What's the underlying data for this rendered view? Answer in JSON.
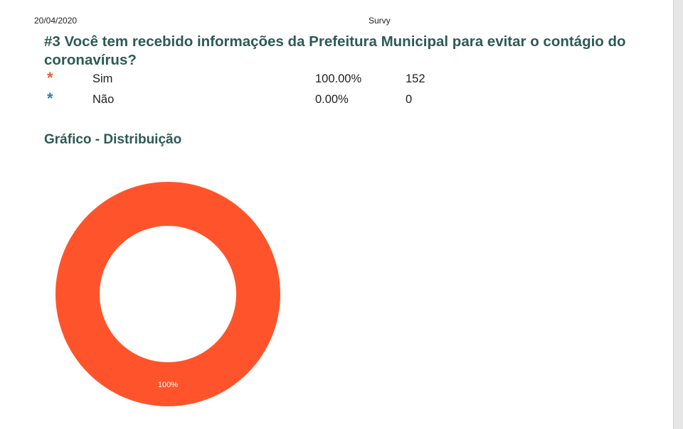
{
  "header": {
    "date": "20/04/2020",
    "app_name": "Survy"
  },
  "question": {
    "title": "#3 Você tem recebido informações da Prefeitura Municipal para evitar o contágio do coronavírus?"
  },
  "answers": [
    {
      "marker": "*",
      "label": "Sim",
      "percent": "100.00%",
      "count": "152",
      "color": "#f05a2e"
    },
    {
      "marker": "*",
      "label": "Não",
      "percent": "0.00%",
      "count": "0",
      "color": "#2a7fb8"
    }
  ],
  "chart_section": {
    "title": "Gráfico - Distribuição"
  },
  "chart_data": {
    "type": "pie",
    "style": "donut",
    "labels": [
      "Sim",
      "Não"
    ],
    "values": [
      152,
      0
    ],
    "percent_labels": [
      "100%",
      ""
    ],
    "colors": [
      "#ff542b",
      "#2a7fb8"
    ]
  }
}
